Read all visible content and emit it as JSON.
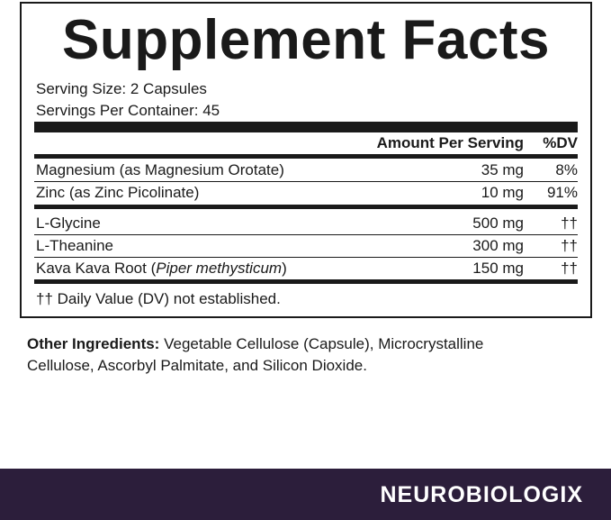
{
  "label": {
    "title": "Supplement Facts",
    "serving_size": "Serving Size: 2 Capsules",
    "servings_per_container": "Servings Per Container: 45",
    "header": {
      "amount": "Amount Per Serving",
      "dv": "%DV"
    },
    "rows": [
      {
        "name": "Magnesium (as Magnesium Orotate)",
        "amount": "35 mg",
        "dv": "8%"
      },
      {
        "name": "Zinc (as Zinc Picolinate)",
        "amount": "10 mg",
        "dv": "91%"
      },
      {
        "name": "L-Glycine",
        "amount": "500 mg",
        "dv": "††"
      },
      {
        "name": "L-Theanine",
        "amount": "300 mg",
        "dv": "††"
      },
      {
        "name_prefix": "Kava Kava Root (",
        "name_italic": "Piper methysticum",
        "name_suffix": ")",
        "amount": "150 mg",
        "dv": "††"
      }
    ],
    "footnote": "†† Daily Value (DV) not established."
  },
  "other_ingredients": {
    "label": "Other Ingredients:",
    "lines": [
      " Vegetable Cellulose (Capsule), Microcrystalline",
      "Cellulose, Ascorbyl Palmitate, and Silicon Dioxide."
    ]
  },
  "brand": "NEUROBIOLOGIX"
}
